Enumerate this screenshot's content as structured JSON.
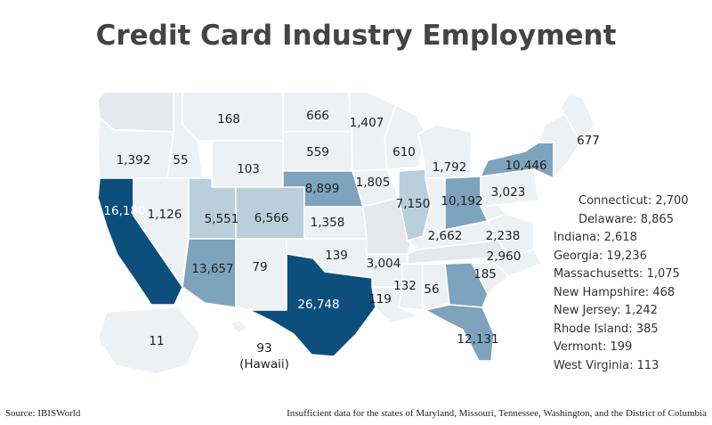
{
  "title": "Credit Card Industry Employment",
  "colors": {
    "none": "#e6e8eb",
    "low": "#eef1f4",
    "mid": "#b9cfdc",
    "high": "#7ea3bd",
    "top": "#0c4f7c",
    "label": "#222222"
  },
  "states": [
    {
      "name": "Washington",
      "value": null,
      "tier": "none",
      "label": ""
    },
    {
      "name": "Oregon",
      "value": 1392,
      "tier": "low",
      "label": "1,392"
    },
    {
      "name": "California",
      "value": 16180,
      "tier": "top",
      "label": "16,180"
    },
    {
      "name": "Idaho",
      "value": 55,
      "tier": "low",
      "label": "55"
    },
    {
      "name": "Nevada",
      "value": 1126,
      "tier": "low",
      "label": "1,126"
    },
    {
      "name": "Montana",
      "value": 168,
      "tier": "low",
      "label": "168"
    },
    {
      "name": "Wyoming",
      "value": 103,
      "tier": "low",
      "label": "103"
    },
    {
      "name": "Utah",
      "value": 5551,
      "tier": "mid",
      "label": "5,551"
    },
    {
      "name": "Arizona",
      "value": 13657,
      "tier": "high",
      "label": "13,657"
    },
    {
      "name": "Colorado",
      "value": 6566,
      "tier": "mid",
      "label": "6,566"
    },
    {
      "name": "New Mexico",
      "value": 79,
      "tier": "low",
      "label": "79"
    },
    {
      "name": "North Dakota",
      "value": 666,
      "tier": "low",
      "label": "666"
    },
    {
      "name": "South Dakota",
      "value": 559,
      "tier": "low",
      "label": "559"
    },
    {
      "name": "Nebraska",
      "value": 8899,
      "tier": "high",
      "label": "8,899"
    },
    {
      "name": "Kansas",
      "value": 1358,
      "tier": "low",
      "label": "1,358"
    },
    {
      "name": "Oklahoma",
      "value": 139,
      "tier": "low",
      "label": "139"
    },
    {
      "name": "Texas",
      "value": 26748,
      "tier": "top",
      "label": "26,748"
    },
    {
      "name": "Minnesota",
      "value": 1407,
      "tier": "low",
      "label": "1,407"
    },
    {
      "name": "Iowa",
      "value": 1805,
      "tier": "low",
      "label": "1,805"
    },
    {
      "name": "Missouri",
      "value": null,
      "tier": "none",
      "label": ""
    },
    {
      "name": "Arkansas",
      "value": 3004,
      "tier": "low",
      "label": "3,004"
    },
    {
      "name": "Louisiana",
      "value": 119,
      "tier": "low",
      "label": "119"
    },
    {
      "name": "Wisconsin",
      "value": 610,
      "tier": "low",
      "label": "610"
    },
    {
      "name": "Illinois",
      "value": 7150,
      "tier": "mid",
      "label": "7,150"
    },
    {
      "name": "Michigan",
      "value": 1792,
      "tier": "low",
      "label": "1,792"
    },
    {
      "name": "Indiana",
      "value": 2618,
      "tier": "low",
      "label": ""
    },
    {
      "name": "Ohio",
      "value": 10192,
      "tier": "high",
      "label": "10,192"
    },
    {
      "name": "Kentucky",
      "value": 2662,
      "tier": "low",
      "label": "2,662"
    },
    {
      "name": "Tennessee",
      "value": null,
      "tier": "none",
      "label": ""
    },
    {
      "name": "Mississippi",
      "value": 132,
      "tier": "low",
      "label": "132"
    },
    {
      "name": "Alabama",
      "value": 56,
      "tier": "low",
      "label": "56"
    },
    {
      "name": "Georgia",
      "value": 19236,
      "tier": "high",
      "label": ""
    },
    {
      "name": "Florida",
      "value": 12131,
      "tier": "high",
      "label": "12,131"
    },
    {
      "name": "South Carolina",
      "value": 185,
      "tier": "low",
      "label": "185"
    },
    {
      "name": "North Carolina",
      "value": 2960,
      "tier": "low",
      "label": "2,960"
    },
    {
      "name": "Virginia",
      "value": 2238,
      "tier": "low",
      "label": "2,238"
    },
    {
      "name": "West Virginia",
      "value": 113,
      "tier": "low",
      "label": ""
    },
    {
      "name": "Pennsylvania",
      "value": 3023,
      "tier": "low",
      "label": "3,023"
    },
    {
      "name": "New York",
      "value": 10446,
      "tier": "high",
      "label": "10,446"
    },
    {
      "name": "New England",
      "value": null,
      "tier": "low",
      "label": ""
    },
    {
      "name": "Maine",
      "value": 677,
      "tier": "low",
      "label": "677"
    },
    {
      "name": "Alaska",
      "value": 11,
      "tier": "low",
      "label": "11"
    },
    {
      "name": "Hawaii",
      "value": 93,
      "tier": "low",
      "label": "93"
    }
  ],
  "hawaii_caption": "(Hawaii)",
  "small_states": [
    {
      "text": "Connecticut: 2,700",
      "indent": true
    },
    {
      "text": "Delaware: 8,865",
      "indent": true
    },
    {
      "text": "Indiana: 2,618",
      "indent": false
    },
    {
      "text": "Georgia: 19,236",
      "indent": false
    },
    {
      "text": "Massachusetts: 1,075",
      "indent": false
    },
    {
      "text": "New Hampshire: 468",
      "indent": false
    },
    {
      "text": "New Jersey: 1,242",
      "indent": false
    },
    {
      "text": "Rhode Island: 385",
      "indent": false
    },
    {
      "text": "Vermont: 199",
      "indent": false
    },
    {
      "text": "West Virginia: 113",
      "indent": false
    }
  ],
  "source": "Source: IBISWorld",
  "note": "Insufficient data for the states of Maryland, Missouri, Tennessee, Washington, and the District of Columbia"
}
